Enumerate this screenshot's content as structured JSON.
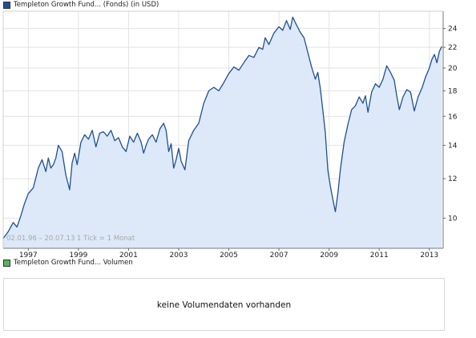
{
  "legend_price": {
    "label": "Templeton Growth Fund... (Fonds) (in USD)",
    "color": "#1f4f96"
  },
  "legend_volume": {
    "label": "Templeton Growth Fund... Volumen",
    "color": "#59b35a"
  },
  "volume_panel": {
    "message": "keine Volumendaten vorhanden"
  },
  "chart_data": {
    "type": "area",
    "title": "Templeton Growth Fund... (Fonds) (in USD)",
    "xlabel": "",
    "ylabel": "",
    "y_scale": "log",
    "ylim": [
      8.7,
      26
    ],
    "y_ticks": [
      10,
      12,
      14,
      16,
      18,
      20,
      22,
      24
    ],
    "y_tick_labels": [
      "10",
      "12",
      "14",
      "16",
      "18",
      "20",
      "22",
      "24"
    ],
    "x_tick_labels": [
      "1997",
      "1999",
      "2001",
      "2003",
      "2005",
      "2007",
      "2009",
      "2011",
      "2013"
    ],
    "x_ticks": [
      1997.0,
      1999.0,
      2001.0,
      2003.0,
      2005.0,
      2007.0,
      2009.0,
      2011.0,
      2013.0
    ],
    "xlim": [
      1996.0,
      2013.55
    ],
    "annotation": "02.01.96 – 20.07.13   1 Tick = 1 Monat",
    "grid": true,
    "line_color": "#1f4f96",
    "fill_color": "#dde9f8",
    "series": [
      {
        "x": [
          1996.0,
          1996.2,
          1996.4,
          1996.55,
          1996.7,
          1996.85,
          1997.0,
          1997.2,
          1997.4,
          1997.55,
          1997.7,
          1997.8,
          1997.9,
          1998.0,
          1998.1,
          1998.2,
          1998.35,
          1998.5,
          1998.65,
          1998.75,
          1998.85,
          1998.95,
          1999.1,
          1999.25,
          1999.4,
          1999.55,
          1999.7,
          1999.85,
          2000.0,
          2000.15,
          2000.3,
          2000.45,
          2000.6,
          2000.75,
          2000.9,
          2001.05,
          2001.2,
          2001.35,
          2001.5,
          2001.6,
          2001.7,
          2001.8,
          2001.95,
          2002.1,
          2002.25,
          2002.4,
          2002.5,
          2002.6,
          2002.7,
          2002.8,
          2002.9,
          2003.0,
          2003.1,
          2003.25,
          2003.4,
          2003.6,
          2003.8,
          2004.0,
          2004.2,
          2004.4,
          2004.6,
          2004.8,
          2005.0,
          2005.2,
          2005.4,
          2005.6,
          2005.8,
          2006.0,
          2006.2,
          2006.35,
          2006.45,
          2006.6,
          2006.8,
          2007.0,
          2007.15,
          2007.3,
          2007.45,
          2007.55,
          2007.7,
          2007.85,
          2008.0,
          2008.15,
          2008.3,
          2008.45,
          2008.55,
          2008.65,
          2008.75,
          2008.85,
          2008.95,
          2009.05,
          2009.15,
          2009.25,
          2009.35,
          2009.45,
          2009.6,
          2009.75,
          2009.9,
          2010.05,
          2010.2,
          2010.35,
          2010.45,
          2010.55,
          2010.7,
          2010.85,
          2011.0,
          2011.15,
          2011.3,
          2011.45,
          2011.6,
          2011.7,
          2011.8,
          2011.95,
          2012.1,
          2012.25,
          2012.4,
          2012.55,
          2012.7,
          2012.85,
          2013.0,
          2013.1,
          2013.2,
          2013.3,
          2013.4,
          2013.5
        ],
        "y": [
          9.1,
          9.4,
          9.8,
          9.6,
          10.1,
          10.7,
          11.2,
          11.5,
          12.6,
          13.1,
          12.4,
          13.2,
          12.6,
          12.8,
          13.2,
          14.0,
          13.6,
          12.2,
          11.4,
          12.9,
          13.5,
          12.8,
          14.2,
          14.7,
          14.4,
          15.0,
          13.9,
          14.8,
          14.9,
          14.6,
          15.0,
          14.3,
          14.5,
          13.9,
          13.6,
          14.6,
          14.2,
          14.8,
          14.2,
          13.5,
          14.0,
          14.4,
          14.7,
          14.2,
          15.1,
          15.5,
          15.0,
          13.6,
          14.1,
          12.6,
          13.1,
          13.8,
          13.0,
          12.5,
          14.3,
          15.0,
          15.5,
          17.0,
          18.0,
          18.3,
          18.0,
          18.7,
          19.5,
          20.1,
          19.8,
          20.5,
          21.2,
          21.0,
          22.0,
          21.8,
          23.0,
          22.3,
          23.5,
          24.2,
          23.8,
          24.9,
          23.9,
          25.3,
          24.4,
          23.6,
          23.0,
          21.5,
          20.1,
          19.0,
          19.6,
          18.2,
          16.5,
          14.8,
          12.5,
          11.6,
          10.9,
          10.3,
          11.2,
          12.5,
          14.2,
          15.4,
          16.5,
          16.8,
          17.5,
          17.0,
          17.6,
          16.3,
          17.9,
          18.6,
          18.3,
          19.0,
          20.2,
          19.6,
          18.9,
          17.6,
          16.5,
          17.5,
          18.1,
          17.9,
          16.4,
          17.5,
          18.2,
          19.2,
          20.0,
          20.8,
          21.3,
          20.5,
          21.6,
          22.1
        ]
      }
    ]
  }
}
